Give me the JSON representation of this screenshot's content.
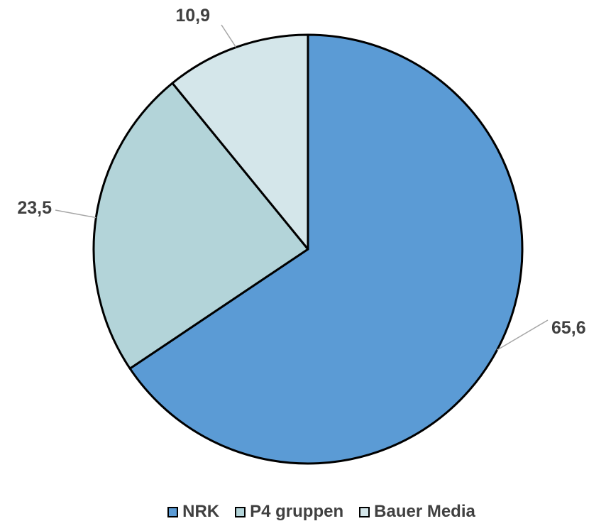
{
  "chart_data": {
    "type": "pie",
    "categories": [
      "NRK",
      "P4 gruppen",
      "Bauer Media"
    ],
    "values": [
      65.6,
      23.5,
      10.9
    ],
    "value_labels": [
      "65,6",
      "23,5",
      "10,9"
    ],
    "colors": [
      "#5b9bd5",
      "#b3d4d9",
      "#d4e6ea"
    ],
    "slice_border_color": "#000000",
    "leader_line_color": "#a6a6a6",
    "start_angle": "12 o'clock",
    "direction": "clockwise",
    "title": "",
    "legend_position": "bottom"
  },
  "legend": [
    {
      "label": "NRK",
      "color": "#5b9bd5"
    },
    {
      "label": "P4 gruppen",
      "color": "#b3d4d9"
    },
    {
      "label": "Bauer Media",
      "color": "#d4e6ea"
    }
  ]
}
